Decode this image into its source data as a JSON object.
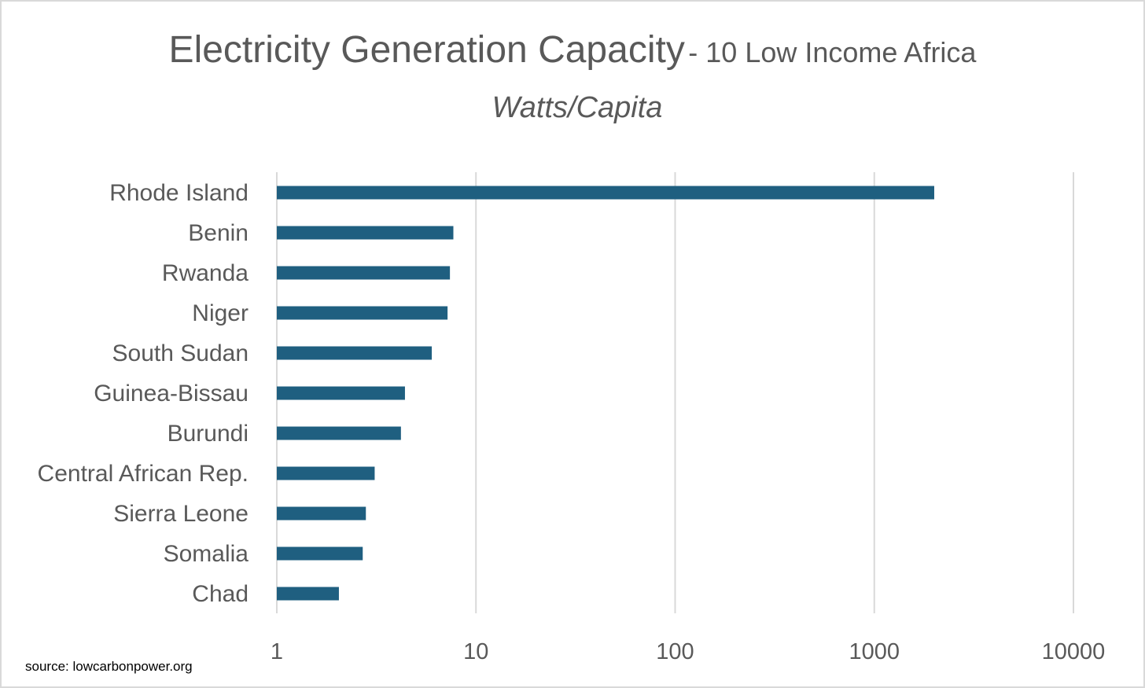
{
  "chart_data": {
    "type": "bar",
    "orientation": "horizontal",
    "title": "Electricity Generation Capacity",
    "title_suffix": "- 10 Low Income Africa",
    "subtitle": "Watts/Capita",
    "xlabel": "",
    "ylabel": "",
    "x_scale": "log",
    "xlim": [
      1,
      10000
    ],
    "x_ticks": [
      "1",
      "10",
      "100",
      "1000",
      "10000"
    ],
    "grid": "vertical",
    "bar_color": "#1f5f80",
    "categories": [
      "Rhode Island",
      "Benin",
      "Rwanda",
      "Niger",
      "South Sudan",
      "Guinea-Bissau",
      "Burundi",
      "Central African Rep.",
      "Sierra Leone",
      "Somalia",
      "Chad"
    ],
    "values": [
      2000,
      7.7,
      7.4,
      7.2,
      6.0,
      4.4,
      4.2,
      3.1,
      2.8,
      2.7,
      2.05
    ]
  },
  "source": "source: lowcarbonpower.org"
}
